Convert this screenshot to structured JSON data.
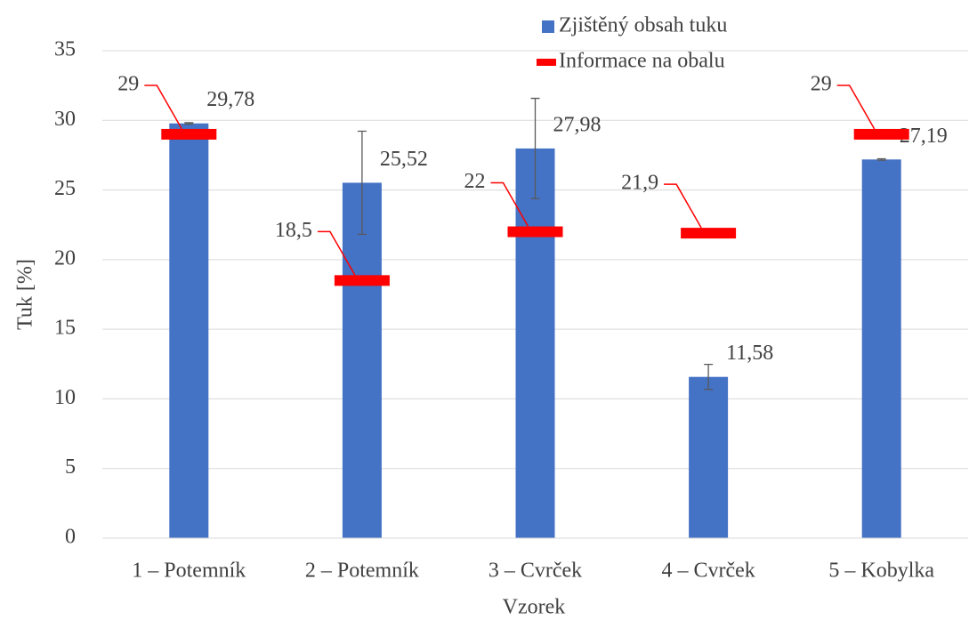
{
  "chart_data": {
    "type": "bar",
    "categories": [
      "1 – Potemník",
      "2 – Potemník",
      "3 – Cvrček",
      "4 – Cvrček",
      "5 – Kobylka"
    ],
    "series": [
      {
        "name": "Zjištěný obsah tuku",
        "color": "#4472c4",
        "values": [
          29.78,
          25.52,
          27.98,
          11.58,
          27.19
        ],
        "value_labels": [
          "29,78",
          "25,52",
          "27,98",
          "11,58",
          "27,19"
        ],
        "errors": [
          0.05,
          3.7,
          3.6,
          0.9,
          0.05
        ]
      },
      {
        "name": "Informace na obalu",
        "color": "#ff0000",
        "marker": "dash",
        "values": [
          29,
          18.5,
          22,
          21.9,
          29
        ],
        "value_labels": [
          "29",
          "18,5",
          "22",
          "21,9",
          "29"
        ]
      }
    ],
    "xlabel": "Vzorek",
    "ylabel": "Tuk [%]",
    "ylim": [
      0,
      35
    ],
    "yticks": [
      0,
      5,
      10,
      15,
      20,
      25,
      30,
      35
    ],
    "grid": true,
    "legend": "top"
  }
}
